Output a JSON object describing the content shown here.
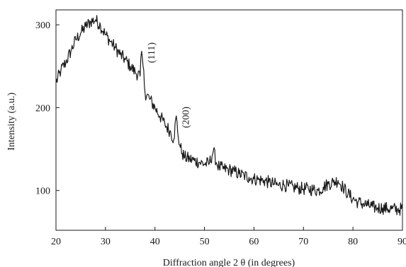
{
  "chart_data": {
    "type": "line",
    "title": "",
    "xlabel": "Diffraction angle 2 θ (in degrees)",
    "ylabel": "Intensity (a.u.)",
    "xlim": [
      20,
      90
    ],
    "ylim": [
      52,
      318
    ],
    "xticks": [
      20,
      30,
      40,
      50,
      60,
      70,
      80,
      90
    ],
    "yticks": [
      100,
      200,
      300
    ],
    "grid": false,
    "legend": "none",
    "line_color": "#1a1a1a",
    "series": [
      {
        "x": [
          20,
          21,
          22,
          23,
          24,
          25,
          26,
          27,
          28,
          29,
          30,
          31,
          32,
          33,
          34,
          35,
          36,
          37,
          37.3,
          37.6,
          38,
          39,
          40,
          41,
          42,
          43,
          43.8,
          44.3,
          44.6,
          45,
          45.5,
          46,
          47,
          48,
          49,
          50,
          51,
          51.8,
          52.5,
          53,
          54,
          55,
          56,
          57,
          58,
          59,
          60,
          61,
          62,
          63,
          64,
          65,
          66,
          67,
          68,
          69,
          70,
          71,
          72,
          73,
          74,
          75,
          76,
          77,
          78,
          79,
          80,
          81,
          82,
          83,
          84,
          85,
          86,
          87,
          88,
          89,
          90
        ],
        "y": [
          230,
          245,
          255,
          268,
          282,
          290,
          298,
          304,
          306,
          299,
          288,
          280,
          272,
          264,
          258,
          250,
          243,
          238,
          268,
          250,
          218,
          210,
          200,
          190,
          180,
          172,
          162,
          190,
          170,
          155,
          145,
          140,
          138,
          136,
          134,
          132,
          133,
          148,
          132,
          128,
          126,
          125,
          123,
          120,
          118,
          116,
          114,
          113,
          112,
          110,
          108,
          106,
          107,
          105,
          104,
          103,
          102,
          102,
          101,
          100,
          104,
          108,
          110,
          112,
          104,
          96,
          90,
          86,
          84,
          82,
          80,
          79,
          79,
          78,
          78,
          77,
          78
        ]
      }
    ],
    "annotations": [
      {
        "label": "(111)",
        "x": 37.3,
        "y": 268
      },
      {
        "label": "(200)",
        "x": 44.3,
        "y": 190
      }
    ]
  }
}
